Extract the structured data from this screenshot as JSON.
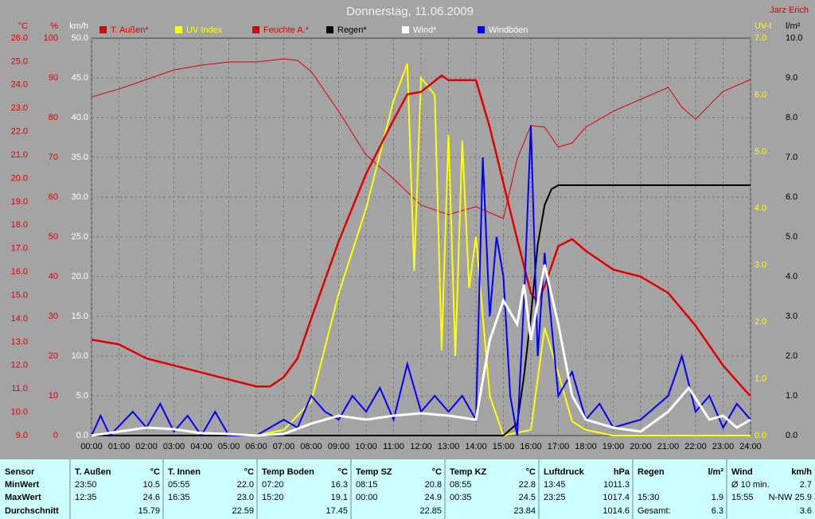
{
  "chart_data": {
    "type": "line",
    "title": "Donnerstag, 11.06.2009",
    "author": "Jarz Erich",
    "xlim": [
      0,
      24
    ],
    "xticks": [
      {
        "value": 0,
        "label": "00:00"
      },
      {
        "value": 1,
        "label": "01:00"
      },
      {
        "value": 2,
        "label": "02:00"
      },
      {
        "value": 3,
        "label": "03:00"
      },
      {
        "value": 4,
        "label": "04:00"
      },
      {
        "value": 5,
        "label": "05:00"
      },
      {
        "value": 6,
        "label": "06:00"
      },
      {
        "value": 7,
        "label": "07:00"
      },
      {
        "value": 8,
        "label": "08:00"
      },
      {
        "value": 9,
        "label": "09:00"
      },
      {
        "value": 10,
        "label": "10:00"
      },
      {
        "value": 11,
        "label": "11:00"
      },
      {
        "value": 12,
        "label": "12:00"
      },
      {
        "value": 13,
        "label": "13:00"
      },
      {
        "value": 14,
        "label": "14:00"
      },
      {
        "value": 15,
        "label": "15:00"
      },
      {
        "value": 16,
        "label": "16:00"
      },
      {
        "value": 17,
        "label": "17:00"
      },
      {
        "value": 18,
        "label": "18:00"
      },
      {
        "value": 19,
        "label": "19:00"
      },
      {
        "value": 20,
        "label": "20:00"
      },
      {
        "value": 21,
        "label": "21:00"
      },
      {
        "value": 22,
        "label": "22:00"
      },
      {
        "value": 23,
        "label": "23:00"
      },
      {
        "value": 24,
        "label": "24:00"
      }
    ],
    "grid": true,
    "axes": [
      {
        "title": "°C",
        "color": "#e00000",
        "lim": [
          9,
          26
        ],
        "ticks": [
          {
            "value": 9,
            "label": "9.0"
          },
          {
            "value": 10,
            "label": "10.0"
          },
          {
            "value": 11,
            "label": "11.0"
          },
          {
            "value": 12,
            "label": "12.0"
          },
          {
            "value": 13,
            "label": "13.0"
          },
          {
            "value": 14,
            "label": "14.0"
          },
          {
            "value": 15,
            "label": "15.0"
          },
          {
            "value": 16,
            "label": "16.0"
          },
          {
            "value": 17,
            "label": "17.0"
          },
          {
            "value": 18,
            "label": "18.0"
          },
          {
            "value": 19,
            "label": "19.0"
          },
          {
            "value": 20,
            "label": "20.0"
          },
          {
            "value": 21,
            "label": "21.0"
          },
          {
            "value": 22,
            "label": "22.0"
          },
          {
            "value": 23,
            "label": "23.0"
          },
          {
            "value": 24,
            "label": "24.0"
          },
          {
            "value": 25,
            "label": "25.0"
          },
          {
            "value": 26,
            "label": "26.0"
          }
        ]
      },
      {
        "title": "%",
        "color": "#e00000",
        "lim": [
          0,
          100
        ],
        "ticks": [
          0,
          10,
          20,
          30,
          40,
          50,
          60,
          70,
          80,
          90,
          100
        ]
      },
      {
        "title": "km/h",
        "color": "#ffffff",
        "lim": [
          0,
          50
        ],
        "ticks": [
          {
            "value": 0,
            "label": "0.0"
          },
          {
            "value": 5,
            "label": "5.0"
          },
          {
            "value": 10,
            "label": "10.0"
          },
          {
            "value": 15,
            "label": "15.0"
          },
          {
            "value": 20,
            "label": "20.0"
          },
          {
            "value": 25,
            "label": "25.0"
          },
          {
            "value": 30,
            "label": "30.0"
          },
          {
            "value": 35,
            "label": "35.0"
          },
          {
            "value": 40,
            "label": "40.0"
          },
          {
            "value": 45,
            "label": "45.0"
          },
          {
            "value": 50,
            "label": "50.0"
          }
        ]
      },
      {
        "title": "UV-I",
        "color": "#ffff00",
        "lim": [
          0,
          7
        ],
        "ticks": [
          {
            "value": 0,
            "label": "0.0"
          },
          {
            "value": 1,
            "label": "1.0"
          },
          {
            "value": 2,
            "label": "2.0"
          },
          {
            "value": 3,
            "label": "3.0"
          },
          {
            "value": 4,
            "label": "4.0"
          },
          {
            "value": 5,
            "label": "5.0"
          },
          {
            "value": 6,
            "label": "6.0"
          },
          {
            "value": 7,
            "label": "7.0"
          }
        ]
      },
      {
        "title": "l/m²",
        "color": "#000000",
        "lim": [
          0,
          10
        ],
        "ticks": [
          {
            "value": 0,
            "label": "0.0"
          },
          {
            "value": 1,
            "label": "1.0"
          },
          {
            "value": 2,
            "label": "2.0"
          },
          {
            "value": 3,
            "label": "3.0"
          },
          {
            "value": 4,
            "label": "4.0"
          },
          {
            "value": 5,
            "label": "5.0"
          },
          {
            "value": 6,
            "label": "6.0"
          },
          {
            "value": 7,
            "label": "7.0"
          },
          {
            "value": 8,
            "label": "8.0"
          },
          {
            "value": 9,
            "label": "9.0"
          },
          {
            "value": 10,
            "label": "10.0"
          }
        ]
      }
    ],
    "series": [
      {
        "name": "T. Außen*",
        "color": "#e00000",
        "axis": 0,
        "x": [
          0,
          1,
          2,
          3,
          4,
          5,
          6,
          6.5,
          7,
          7.5,
          8,
          9,
          10,
          11,
          11.5,
          12,
          12.75,
          13,
          14,
          14.5,
          15,
          15.5,
          16,
          16.25,
          16.5,
          17,
          17.5,
          18,
          19,
          20,
          21,
          22,
          23,
          23.83,
          24
        ],
        "values": [
          13.1,
          12.9,
          12.3,
          12.0,
          11.7,
          11.4,
          11.1,
          11.1,
          11.5,
          12.3,
          14.0,
          17.3,
          20.2,
          22.5,
          23.6,
          23.7,
          24.4,
          24.2,
          24.2,
          22.2,
          19.8,
          17.4,
          15.1,
          14.7,
          15.4,
          17.1,
          17.4,
          16.9,
          16.1,
          15.8,
          15.1,
          13.7,
          12.0,
          10.9,
          10.7
        ]
      },
      {
        "name": "UV Index",
        "color": "#ffff00",
        "axis": 3,
        "x": [
          0,
          6,
          7,
          8,
          9,
          10,
          11,
          11.5,
          11.75,
          12,
          12.5,
          12.75,
          13,
          13.25,
          13.5,
          13.75,
          14,
          14.5,
          15,
          16,
          16.5,
          17,
          17.5,
          18,
          19,
          24
        ],
        "values": [
          0,
          0,
          0.1,
          0.6,
          2.5,
          4.0,
          5.9,
          6.55,
          2.9,
          6.3,
          6.0,
          1.5,
          5.3,
          1.4,
          5.2,
          2.6,
          3.5,
          0.7,
          0,
          0.1,
          1.9,
          1.1,
          0.25,
          0.1,
          0,
          0
        ]
      },
      {
        "name": "Feuchte A.*",
        "color": "#e00000",
        "axis": 1,
        "x": [
          0,
          1,
          2,
          3,
          4,
          5,
          6,
          7,
          7.5,
          8,
          9,
          10,
          11,
          12,
          13,
          14,
          15,
          15.5,
          16,
          16.5,
          17,
          17.5,
          18,
          19,
          20,
          21,
          21.5,
          22,
          23,
          24
        ],
        "values": [
          85.2,
          87.2,
          89.6,
          92,
          93.2,
          94,
          94,
          94.8,
          94.4,
          91.6,
          81.6,
          70.6,
          64.6,
          58,
          55.6,
          57.6,
          54.6,
          69.6,
          78,
          77.6,
          72.6,
          73.6,
          77.6,
          81.6,
          84.6,
          87.6,
          82.6,
          79.6,
          86.6,
          89.6
        ]
      },
      {
        "name": "Regen*",
        "color": "#000000",
        "axis": 4,
        "x": [
          0,
          15,
          15.5,
          15.75,
          16,
          16.25,
          16.5,
          16.75,
          17,
          24
        ],
        "values": [
          0,
          0,
          0.3,
          1.5,
          3.0,
          4.8,
          5.8,
          6.2,
          6.3,
          6.3
        ]
      },
      {
        "name": "Wind*",
        "color": "#ffffff",
        "axis": 2,
        "x": [
          0,
          1,
          2,
          3,
          4,
          5,
          6,
          7,
          8,
          9,
          10,
          11,
          12,
          13,
          14,
          14.5,
          15,
          15.5,
          15.75,
          16,
          16.5,
          17,
          17.5,
          18,
          19,
          20,
          21,
          21.75,
          22.5,
          23,
          23.5,
          24
        ],
        "values": [
          0,
          0.5,
          1.0,
          0.8,
          0.3,
          0.2,
          0,
          0.2,
          1.5,
          2.5,
          2.0,
          2.5,
          2.8,
          2.5,
          2.0,
          12.0,
          17.0,
          14.0,
          19.0,
          12.0,
          21.5,
          14.0,
          5.0,
          2.0,
          1.0,
          0.5,
          3.0,
          6.0,
          2.0,
          2.5,
          1.0,
          2.0
        ]
      },
      {
        "name": "Windböen",
        "color": "#0000ff",
        "axis": 2,
        "x": [
          0,
          0.33,
          0.67,
          1.5,
          2,
          2.5,
          3,
          3.5,
          4,
          4.5,
          5,
          6,
          7,
          7.5,
          8,
          8.5,
          9,
          9.5,
          10,
          10.5,
          11,
          11.5,
          12,
          12.5,
          13,
          13.5,
          14,
          14.25,
          14.5,
          14.75,
          15,
          15.25,
          15.5,
          15.75,
          16,
          16.25,
          16.5,
          17,
          17.5,
          18,
          18.5,
          19,
          20,
          21,
          21.5,
          22,
          22.5,
          23,
          23.5,
          24
        ],
        "values": [
          0,
          2.5,
          0,
          3,
          1,
          4,
          0.5,
          2.5,
          0,
          3,
          0,
          0,
          2,
          1,
          5,
          3,
          2,
          5,
          3,
          6,
          2,
          9,
          3,
          5,
          3,
          5,
          2,
          35,
          15,
          25,
          20,
          5,
          0,
          17,
          39,
          10,
          23,
          5,
          8,
          2,
          4,
          1,
          2,
          5,
          10,
          3,
          5,
          1,
          4,
          2
        ]
      }
    ]
  },
  "table": {
    "columns": [
      {
        "name": "Sensor"
      },
      {
        "name": "T. Außen",
        "unit": "°C"
      },
      {
        "name": "T. Innen",
        "unit": "°C"
      },
      {
        "name": "Temp Boden",
        "unit": "°C"
      },
      {
        "name": "Temp SZ",
        "unit": "°C"
      },
      {
        "name": "Temp KZ",
        "unit": "°C"
      },
      {
        "name": "Luftdruck",
        "unit": "hPa"
      },
      {
        "name": "Regen",
        "unit": "l/m²"
      },
      {
        "name": "Wind",
        "unit": "km/h"
      }
    ],
    "rows": [
      {
        "label": "MinWert",
        "cells": [
          {
            "left": "23:50",
            "right": "10.5"
          },
          {
            "left": "05:55",
            "right": "22.0"
          },
          {
            "left": "07:20",
            "right": "16.3"
          },
          {
            "left": "08:15",
            "right": "20.8"
          },
          {
            "left": "08:55",
            "right": "22.8"
          },
          {
            "left": "13:45",
            "right": "1011.3"
          },
          {},
          {
            "left": "Ø 10 min.",
            "right": "2.7"
          }
        ]
      },
      {
        "label": "MaxWert",
        "cells": [
          {
            "left": "12:35",
            "right": "24.6"
          },
          {
            "left": "16:35",
            "right": "23.0"
          },
          {
            "left": "15:20",
            "right": "19.1"
          },
          {
            "left": "00:00",
            "right": "24.9"
          },
          {
            "left": "00:35",
            "right": "24.5"
          },
          {
            "left": "23:25",
            "right": "1017.4"
          },
          {
            "left": "15:30",
            "right": "1.9"
          },
          {
            "left": "15:55",
            "right": "N-NW 25.9"
          }
        ]
      },
      {
        "label": "Durchschnitt",
        "cells": [
          {
            "right": "15.79"
          },
          {
            "right": "22.59"
          },
          {
            "right": "17.45"
          },
          {
            "right": "22.85"
          },
          {
            "right": "23.84"
          },
          {
            "right": "1014.6"
          },
          {
            "left": "Gesamt:",
            "right": "6.3"
          },
          {
            "right": "3.6"
          }
        ]
      }
    ]
  }
}
